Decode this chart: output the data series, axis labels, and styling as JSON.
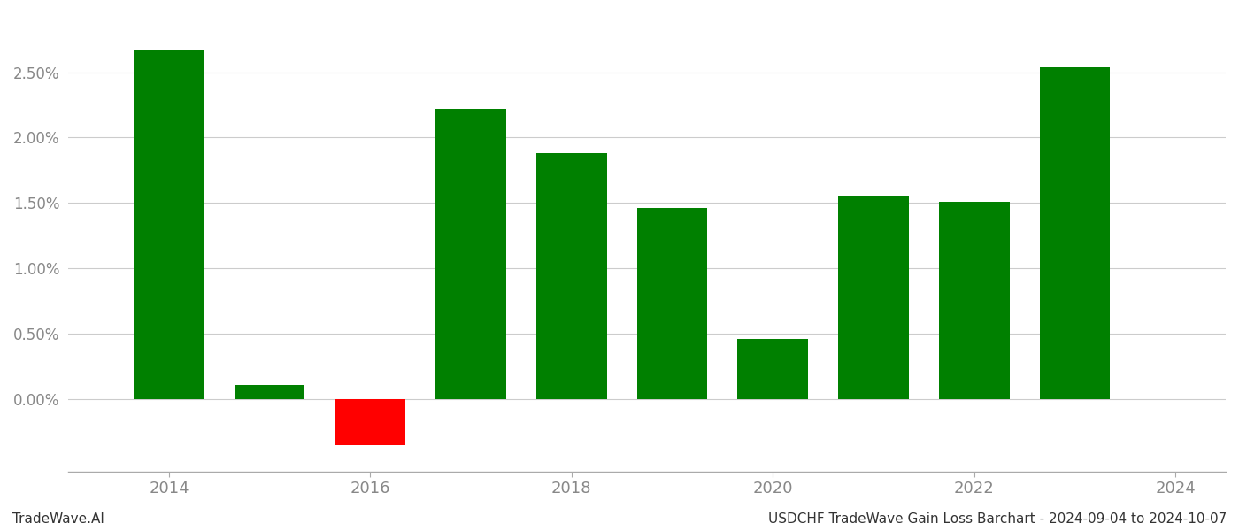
{
  "years": [
    2014,
    2015,
    2016,
    2017,
    2018,
    2019,
    2020,
    2021,
    2022,
    2023
  ],
  "values": [
    2.67,
    0.11,
    -0.35,
    2.22,
    1.88,
    1.46,
    0.46,
    1.56,
    1.51,
    2.54
  ],
  "bar_colors": [
    "#008000",
    "#008000",
    "#ff0000",
    "#008000",
    "#008000",
    "#008000",
    "#008000",
    "#008000",
    "#008000",
    "#008000"
  ],
  "bar_width": 0.7,
  "ylim": [
    -0.55,
    2.95
  ],
  "yticks": [
    0.0,
    0.5,
    1.0,
    1.5,
    2.0,
    2.5
  ],
  "xlabel": "",
  "ylabel": "",
  "title": "",
  "footer_left": "TradeWave.AI",
  "footer_right": "USDCHF TradeWave Gain Loss Barchart - 2024-09-04 to 2024-10-07",
  "background_color": "#ffffff",
  "grid_color": "#cccccc",
  "tick_label_color": "#888888",
  "footer_color_left": "#333333",
  "footer_color_right": "#333333",
  "xlim_left": 2013.0,
  "xlim_right": 2024.5
}
